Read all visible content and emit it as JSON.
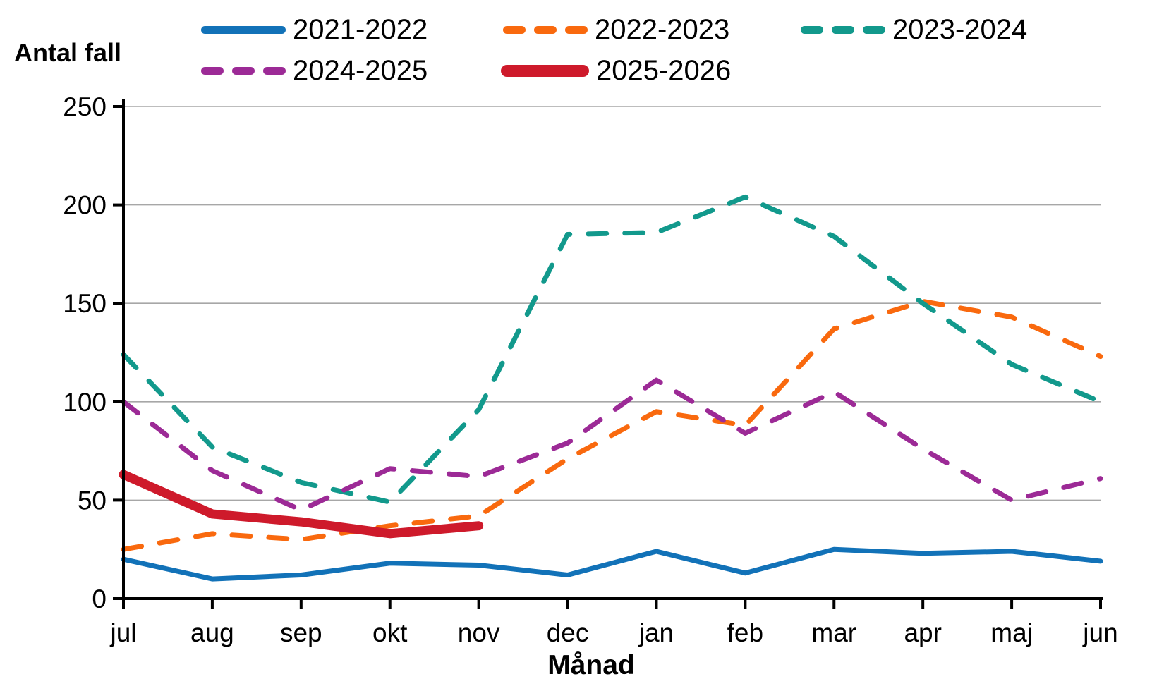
{
  "chart_data": {
    "type": "line",
    "title": "",
    "ylabel": "Antal fall",
    "xlabel": "Månad",
    "categories": [
      "jul",
      "aug",
      "sep",
      "okt",
      "nov",
      "dec",
      "jan",
      "feb",
      "mar",
      "apr",
      "maj",
      "jun"
    ],
    "y_ticks": [
      0,
      50,
      100,
      150,
      200,
      250
    ],
    "ylim": [
      0,
      250
    ],
    "grid": "horizontal",
    "gridline_color": "#A7A7A7",
    "axis_color": "#000000",
    "legend_position": "top",
    "series": [
      {
        "name": "2021-2022",
        "color": "#1272B8",
        "style": "solid",
        "width": 7,
        "values": [
          20,
          10,
          12,
          18,
          17,
          12,
          24,
          13,
          25,
          23,
          24,
          19
        ]
      },
      {
        "name": "2022-2023",
        "color": "#F9690E",
        "style": "dashed",
        "width": 7,
        "values": [
          25,
          33,
          30,
          37,
          42,
          71,
          95,
          88,
          137,
          151,
          143,
          123
        ]
      },
      {
        "name": "2023-2024",
        "color": "#12998C",
        "style": "dashed",
        "width": 7,
        "values": [
          124,
          77,
          59,
          49,
          96,
          185,
          186,
          204,
          184,
          150,
          119,
          100
        ]
      },
      {
        "name": "2024-2025",
        "color": "#9C2A96",
        "style": "dashed",
        "width": 7,
        "values": [
          100,
          65,
          45,
          66,
          62,
          79,
          111,
          84,
          105,
          76,
          50,
          61
        ]
      },
      {
        "name": "2025-2026",
        "color": "#CE1A2B",
        "style": "solid",
        "width": 13,
        "values": [
          63,
          43,
          39,
          33,
          37,
          null,
          null,
          null,
          null,
          null,
          null,
          null
        ]
      }
    ]
  }
}
